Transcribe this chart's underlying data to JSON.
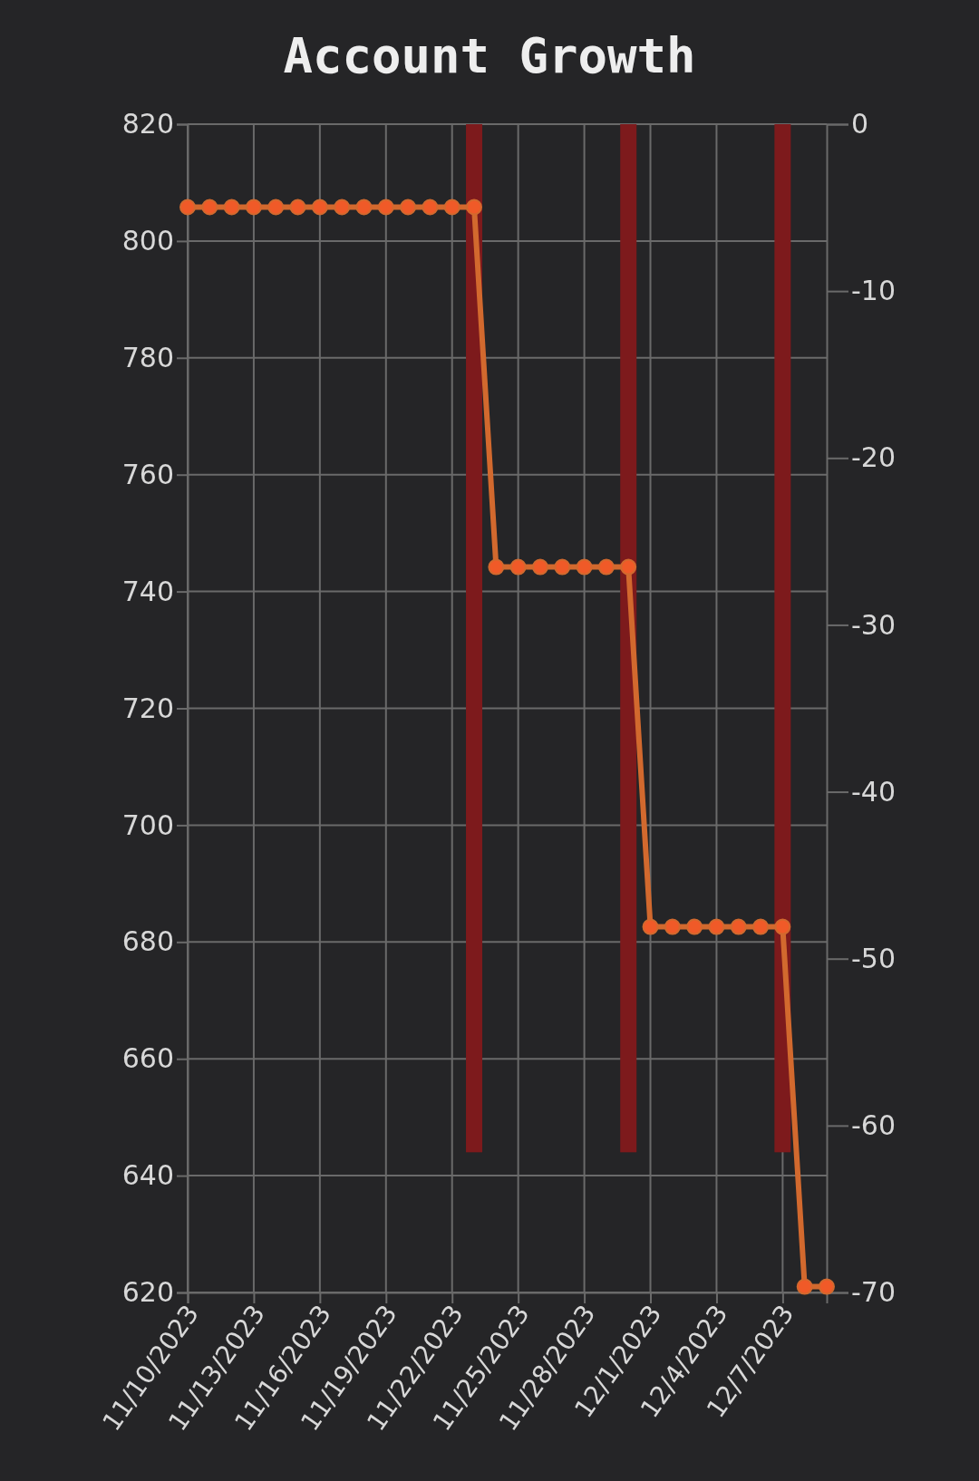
{
  "chart_data": {
    "type": "line",
    "title": "Account Growth",
    "xlim": [
      "2023-11-10",
      "2023-12-09"
    ],
    "xticks": [
      {
        "value": "2023-11-10",
        "label": "11/10/2023"
      },
      {
        "value": "2023-11-13",
        "label": "11/13/2023"
      },
      {
        "value": "2023-11-16",
        "label": "11/16/2023"
      },
      {
        "value": "2023-11-19",
        "label": "11/19/2023"
      },
      {
        "value": "2023-11-22",
        "label": "11/22/2023"
      },
      {
        "value": "2023-11-25",
        "label": "11/25/2023"
      },
      {
        "value": "2023-11-28",
        "label": "11/28/2023"
      },
      {
        "value": "2023-12-01",
        "label": "12/1/2023"
      },
      {
        "value": "2023-12-04",
        "label": "12/4/2023"
      },
      {
        "value": "2023-12-07",
        "label": "12/7/2023"
      }
    ],
    "ylim": [
      620,
      820
    ],
    "yticks": [
      620,
      640,
      660,
      680,
      700,
      720,
      740,
      760,
      780,
      800,
      820
    ],
    "y2lim": [
      -70,
      0
    ],
    "y2ticks": [
      -70,
      -60,
      -50,
      -40,
      -30,
      -20,
      -10,
      0
    ],
    "grid": true,
    "marker": "circle",
    "series": [
      {
        "type": "bar",
        "axis": "y2",
        "color": "#7d1a1c",
        "x": [
          "2023-11-23",
          "2023-11-30",
          "2023-12-07"
        ],
        "values": [
          -61.6,
          -61.6,
          -61.6
        ]
      },
      {
        "color": "#f05a28",
        "x": [
          "2023-11-10",
          "2023-11-11",
          "2023-11-12",
          "2023-11-13",
          "2023-11-14",
          "2023-11-15",
          "2023-11-16",
          "2023-11-17",
          "2023-11-18",
          "2023-11-19",
          "2023-11-20",
          "2023-11-21",
          "2023-11-22",
          "2023-11-23",
          "2023-11-24",
          "2023-11-25",
          "2023-11-26",
          "2023-11-27",
          "2023-11-28",
          "2023-11-29",
          "2023-11-30",
          "2023-12-01",
          "2023-12-02",
          "2023-12-03",
          "2023-12-04",
          "2023-12-05",
          "2023-12-06",
          "2023-12-07",
          "2023-12-08",
          "2023-12-09"
        ],
        "values": [
          805.8,
          805.8,
          805.8,
          805.8,
          805.8,
          805.8,
          805.8,
          805.8,
          805.8,
          805.8,
          805.8,
          805.8,
          805.8,
          805.8,
          744.2,
          744.2,
          744.2,
          744.2,
          744.2,
          744.2,
          744.2,
          682.6,
          682.6,
          682.6,
          682.6,
          682.6,
          682.6,
          682.6,
          621.0,
          621.0
        ]
      }
    ]
  }
}
